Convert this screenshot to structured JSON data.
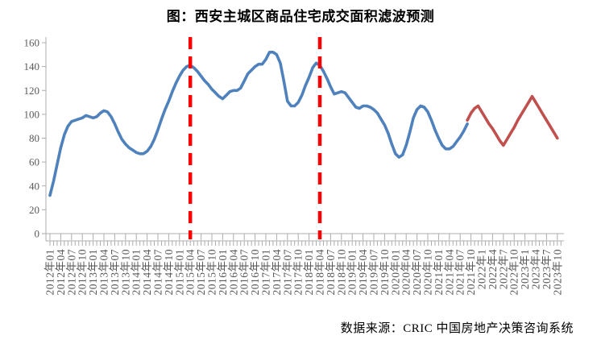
{
  "title": "图：西安主城区商品住宅成交面积滤波预测",
  "source": "数据来源：CRIC 中国房地产决策咨询系统",
  "colors": {
    "historical_line": "#4F81BD",
    "forecast_line": "#C0504D",
    "marker_line": "#FF0000",
    "axis": "#ACACAC",
    "tick_label": "#595959",
    "title_text": "#000000"
  },
  "chart_data": {
    "type": "line",
    "title": "图：西安主城区商品住宅成交面积滤波预测",
    "xlabel": "",
    "ylabel": "",
    "ylim": [
      0,
      160
    ],
    "yticks": [
      0,
      20,
      40,
      60,
      80,
      100,
      120,
      140,
      160
    ],
    "grid": false,
    "legend": "none",
    "x_frequency": "monthly",
    "x_start": "2012-01",
    "x_end": "2023-10",
    "x_tick_interval_months": 3,
    "x_tick_labels": [
      "2012年01",
      "2012年04",
      "2012年07",
      "2012年10",
      "2013年01",
      "2013年04",
      "2013年07",
      "2013年10",
      "2014年01",
      "2014年04",
      "2014年07",
      "2014年10",
      "2015年01",
      "2015年04",
      "2015年07",
      "2015年10",
      "2016年01",
      "2016年04",
      "2016年07",
      "2016年10",
      "2017年01",
      "2017年04",
      "2017年07",
      "2017年10",
      "2018年01",
      "2018年04",
      "2018年07",
      "2018年10",
      "2019年01",
      "2019年04",
      "2019年07",
      "2019年10",
      "2020年01",
      "2020年04",
      "2020年07",
      "2020年10",
      "2021年01",
      "2021年04",
      "2021年07",
      "2021年10",
      "2022年1",
      "2022年4",
      "2022年7",
      "2022年10",
      "2023年1",
      "2023年4",
      "2023年7",
      "2023年10"
    ],
    "series": [
      {
        "name": "historical",
        "color": "#4F81BD",
        "start_month_index": 0,
        "start_label": "2012年01",
        "values": [
          32,
          44,
          58,
          72,
          83,
          90,
          94,
          95,
          96,
          97,
          99,
          98,
          97,
          98,
          101,
          103,
          102,
          98,
          92,
          85,
          79,
          75,
          72,
          70,
          68,
          67,
          67,
          69,
          73,
          79,
          87,
          96,
          104,
          111,
          119,
          126,
          132,
          137,
          140,
          141,
          139,
          136,
          132,
          128,
          125,
          121,
          118,
          115,
          113,
          116,
          119,
          120,
          120,
          122,
          128,
          134,
          137,
          140,
          142,
          142,
          146,
          152,
          152,
          150,
          143,
          128,
          111,
          107,
          107,
          110,
          116,
          124,
          131,
          139,
          143,
          141,
          136,
          130,
          123,
          117,
          118,
          119,
          118,
          114,
          110,
          106,
          105,
          107,
          107,
          106,
          104,
          101,
          96,
          91,
          84,
          75,
          67,
          64,
          66,
          74,
          85,
          97,
          104,
          107,
          106,
          102,
          95,
          87,
          80,
          74,
          71,
          71,
          73,
          77,
          81,
          86,
          92
        ]
      },
      {
        "name": "forecast",
        "color": "#C0504D",
        "start_month_index": 116,
        "start_label": "2021年09",
        "values": [
          95,
          101,
          105,
          107,
          102,
          97,
          92,
          88,
          83,
          78,
          74,
          79,
          84,
          89,
          95,
          100,
          105,
          110,
          115,
          110,
          105,
          100,
          95,
          90,
          85,
          80
        ]
      }
    ],
    "markers": [
      {
        "type": "vline",
        "month_index": 39,
        "at": "2015年04",
        "color": "#FF0000",
        "style": "dashed"
      },
      {
        "type": "vline",
        "month_index": 75,
        "at": "2018年04",
        "color": "#FF0000",
        "style": "dashed"
      }
    ]
  }
}
